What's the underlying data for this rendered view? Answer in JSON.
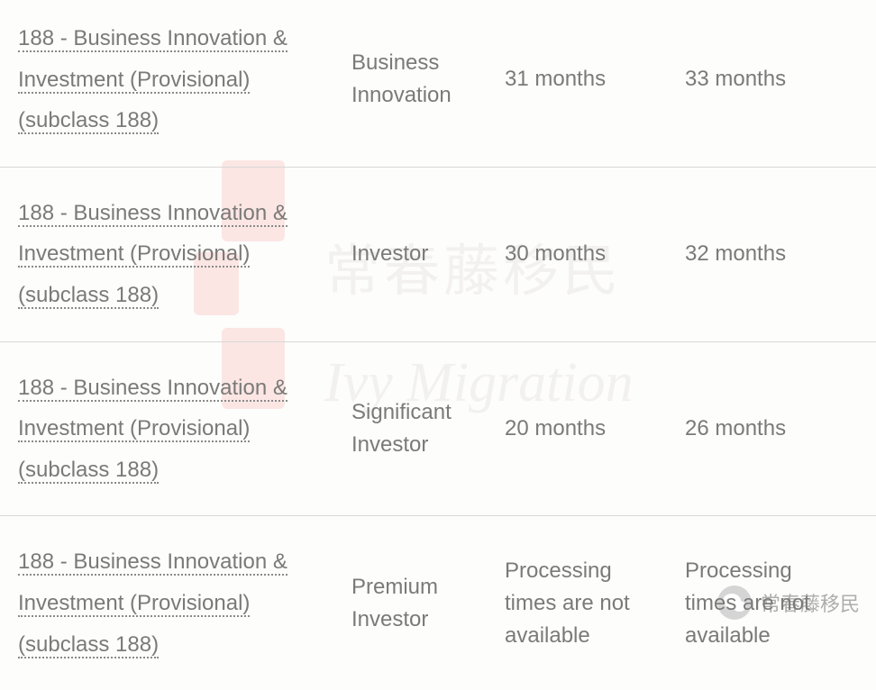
{
  "watermark": {
    "cn": "常春藤移民",
    "en": "Ivy Migration"
  },
  "wechat_label": "常春藤移民",
  "table": {
    "rows": [
      {
        "visa": "188 - Business Innovation & Investment (Provisional) (subclass 188)",
        "stream": "Business Innovation",
        "time1": "31 months",
        "time2": "33 months"
      },
      {
        "visa": "188 - Business Innovation & Investment (Provisional) (subclass 188)",
        "stream": "Investor",
        "time1": "30 months",
        "time2": "32 months"
      },
      {
        "visa": "188 - Business Innovation & Investment (Provisional) (subclass 188)",
        "stream": "Significant Investor",
        "time1": "20 months",
        "time2": "26 months"
      },
      {
        "visa": "188 - Business Innovation & Investment (Provisional) (subclass 188)",
        "stream": "Premium Investor",
        "time1": "Processing times are not available",
        "time2": "Processing times are not available"
      }
    ]
  }
}
